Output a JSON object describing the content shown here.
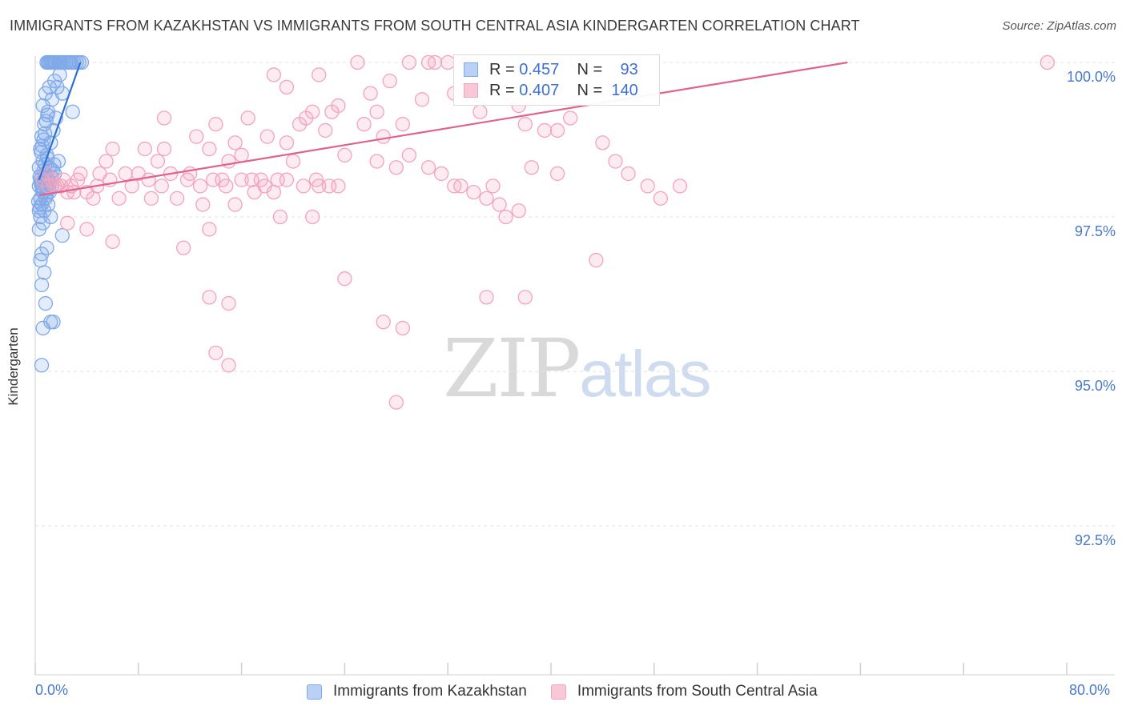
{
  "title": "IMMIGRANTS FROM KAZAKHSTAN VS IMMIGRANTS FROM SOUTH CENTRAL ASIA KINDERGARTEN CORRELATION CHART",
  "source": "Source: ZipAtlas.com",
  "watermark": {
    "zip": "ZIP",
    "atlas": "atlas"
  },
  "legend_top": {
    "rows": [
      {
        "r_label": "R =",
        "r_value": "0.457",
        "n_label": "N =",
        "n_value": "93"
      },
      {
        "r_label": "R =",
        "r_value": "0.407",
        "n_label": "N =",
        "n_value": "140"
      }
    ]
  },
  "x_axis_labels": {
    "left": "0.0%",
    "right": "80.0%"
  },
  "chart_data": {
    "type": "scatter",
    "title": "IMMIGRANTS FROM KAZAKHSTAN VS IMMIGRANTS FROM SOUTH CENTRAL ASIA KINDERGARTEN CORRELATION CHART",
    "xlabel": "",
    "ylabel": "Kindergarten",
    "xlim": [
      0,
      80
    ],
    "ylim": [
      90.0,
      100.5
    ],
    "y_ticks": [
      {
        "value": 100.0,
        "label": "100.0%"
      },
      {
        "value": 97.5,
        "label": "97.5%"
      },
      {
        "value": 95.0,
        "label": "95.0%"
      },
      {
        "value": 92.5,
        "label": "92.5%"
      }
    ],
    "x_ticks": [
      0,
      8,
      16,
      24,
      32,
      40,
      48,
      56,
      64,
      72,
      80
    ],
    "grid": true,
    "legend": "bottom-center",
    "series": [
      {
        "name": "Immigrants from Kazakhstan",
        "color": "#7fa9e8",
        "line_color": "#2e6fd6",
        "R": 0.457,
        "N": 93,
        "trend": {
          "x0": 0.3,
          "y0": 98.1,
          "x1": 3.5,
          "y1": 100.0
        },
        "points": [
          [
            0.9,
            100.0
          ],
          [
            1.0,
            100.0
          ],
          [
            1.1,
            100.0
          ],
          [
            1.3,
            100.0
          ],
          [
            1.5,
            100.0
          ],
          [
            1.6,
            100.0
          ],
          [
            1.8,
            100.0
          ],
          [
            2.0,
            100.0
          ],
          [
            2.2,
            100.0
          ],
          [
            2.4,
            100.0
          ],
          [
            2.6,
            100.0
          ],
          [
            2.8,
            100.0
          ],
          [
            3.0,
            100.0
          ],
          [
            3.2,
            100.0
          ],
          [
            3.4,
            100.0
          ],
          [
            1.2,
            100.0
          ],
          [
            1.9,
            100.0
          ],
          [
            2.7,
            100.0
          ],
          [
            3.6,
            100.0
          ],
          [
            1.4,
            100.0
          ],
          [
            1.9,
            99.8
          ],
          [
            1.5,
            99.7
          ],
          [
            1.1,
            99.6
          ],
          [
            1.7,
            99.6
          ],
          [
            2.1,
            99.5
          ],
          [
            0.8,
            99.5
          ],
          [
            1.3,
            99.4
          ],
          [
            0.6,
            99.3
          ],
          [
            2.9,
            99.2
          ],
          [
            1.0,
            99.2
          ],
          [
            1.6,
            99.1
          ],
          [
            0.7,
            99.0
          ],
          [
            1.4,
            98.9
          ],
          [
            0.5,
            98.8
          ],
          [
            1.2,
            98.7
          ],
          [
            0.4,
            98.6
          ],
          [
            0.9,
            98.5
          ],
          [
            1.8,
            98.4
          ],
          [
            0.6,
            98.4
          ],
          [
            1.1,
            98.3
          ],
          [
            0.3,
            98.3
          ],
          [
            0.8,
            98.2
          ],
          [
            1.5,
            98.2
          ],
          [
            0.4,
            98.1
          ],
          [
            0.7,
            98.1
          ],
          [
            1.0,
            98.1
          ],
          [
            0.5,
            98.0
          ],
          [
            0.9,
            98.0
          ],
          [
            1.3,
            98.0
          ],
          [
            0.3,
            98.0
          ],
          [
            0.6,
            97.9
          ],
          [
            1.1,
            97.9
          ],
          [
            0.4,
            97.8
          ],
          [
            0.8,
            97.8
          ],
          [
            0.5,
            97.7
          ],
          [
            1.0,
            97.7
          ],
          [
            0.3,
            97.6
          ],
          [
            0.7,
            97.6
          ],
          [
            1.2,
            97.5
          ],
          [
            0.4,
            97.5
          ],
          [
            0.6,
            97.4
          ],
          [
            0.3,
            97.3
          ],
          [
            2.1,
            97.2
          ],
          [
            0.9,
            97.0
          ],
          [
            0.5,
            96.9
          ],
          [
            0.4,
            96.8
          ],
          [
            0.7,
            96.6
          ],
          [
            0.5,
            96.4
          ],
          [
            0.8,
            96.1
          ],
          [
            1.2,
            95.8
          ],
          [
            1.4,
            95.8
          ],
          [
            0.6,
            95.7
          ],
          [
            0.5,
            95.1
          ],
          [
            0.35,
            98.15
          ],
          [
            0.45,
            98.05
          ],
          [
            0.55,
            97.95
          ],
          [
            0.65,
            98.25
          ],
          [
            0.75,
            98.35
          ],
          [
            0.85,
            97.85
          ],
          [
            0.95,
            98.45
          ],
          [
            1.05,
            97.95
          ],
          [
            1.15,
            98.05
          ],
          [
            1.25,
            98.15
          ],
          [
            1.35,
            98.25
          ],
          [
            1.45,
            98.35
          ],
          [
            0.25,
            97.75
          ],
          [
            0.35,
            97.65
          ],
          [
            0.45,
            98.55
          ],
          [
            0.55,
            98.65
          ],
          [
            0.65,
            98.75
          ],
          [
            0.75,
            98.85
          ],
          [
            0.85,
            99.05
          ],
          [
            0.95,
            99.15
          ]
        ]
      },
      {
        "name": "Immigrants from South Central Asia",
        "color": "#f3a3bd",
        "line_color": "#e0628e",
        "R": 0.407,
        "N": 140,
        "trend": {
          "x0": 0.3,
          "y0": 97.85,
          "x1": 63.0,
          "y1": 100.0
        },
        "points": [
          [
            25.0,
            100.0
          ],
          [
            29.0,
            100.0
          ],
          [
            30.5,
            100.0
          ],
          [
            31.0,
            100.0
          ],
          [
            32.0,
            100.0
          ],
          [
            33.5,
            100.0
          ],
          [
            37.0,
            100.0
          ],
          [
            40.0,
            100.0
          ],
          [
            42.0,
            100.0
          ],
          [
            78.5,
            100.0
          ],
          [
            18.5,
            99.8
          ],
          [
            22.0,
            99.8
          ],
          [
            27.5,
            99.7
          ],
          [
            33.0,
            99.6
          ],
          [
            19.5,
            99.6
          ],
          [
            26.0,
            99.5
          ],
          [
            32.5,
            99.5
          ],
          [
            30.0,
            99.4
          ],
          [
            37.5,
            99.3
          ],
          [
            21.5,
            99.2
          ],
          [
            34.5,
            99.2
          ],
          [
            23.0,
            99.2
          ],
          [
            10.0,
            99.1
          ],
          [
            16.5,
            99.1
          ],
          [
            20.5,
            99.0
          ],
          [
            14.0,
            99.0
          ],
          [
            25.5,
            99.0
          ],
          [
            38.0,
            99.0
          ],
          [
            22.5,
            98.9
          ],
          [
            39.5,
            98.9
          ],
          [
            12.5,
            98.8
          ],
          [
            18.0,
            98.8
          ],
          [
            27.0,
            98.8
          ],
          [
            15.5,
            98.7
          ],
          [
            19.5,
            98.7
          ],
          [
            6.0,
            98.6
          ],
          [
            8.5,
            98.6
          ],
          [
            10.0,
            98.6
          ],
          [
            13.5,
            98.6
          ],
          [
            16.0,
            98.5
          ],
          [
            24.0,
            98.5
          ],
          [
            5.5,
            98.4
          ],
          [
            9.5,
            98.4
          ],
          [
            15.0,
            98.4
          ],
          [
            20.0,
            98.4
          ],
          [
            26.5,
            98.4
          ],
          [
            28.0,
            98.3
          ],
          [
            38.5,
            98.3
          ],
          [
            3.5,
            98.2
          ],
          [
            5.0,
            98.2
          ],
          [
            7.0,
            98.2
          ],
          [
            8.0,
            98.2
          ],
          [
            10.5,
            98.2
          ],
          [
            12.0,
            98.2
          ],
          [
            14.5,
            98.1
          ],
          [
            16.0,
            98.1
          ],
          [
            17.5,
            98.1
          ],
          [
            19.5,
            98.1
          ],
          [
            22.0,
            98.0
          ],
          [
            23.5,
            98.0
          ],
          [
            1.0,
            98.0
          ],
          [
            1.5,
            98.0
          ],
          [
            2.0,
            98.0
          ],
          [
            2.5,
            97.9
          ],
          [
            3.0,
            97.9
          ],
          [
            4.0,
            97.9
          ],
          [
            4.5,
            97.8
          ],
          [
            6.5,
            97.8
          ],
          [
            9.0,
            97.8
          ],
          [
            11.0,
            97.8
          ],
          [
            13.0,
            97.7
          ],
          [
            15.5,
            97.7
          ],
          [
            17.0,
            97.9
          ],
          [
            18.5,
            97.9
          ],
          [
            2.5,
            97.4
          ],
          [
            4.0,
            97.3
          ],
          [
            6.0,
            97.1
          ],
          [
            11.5,
            97.0
          ],
          [
            13.5,
            97.3
          ],
          [
            19.0,
            97.5
          ],
          [
            21.5,
            97.5
          ],
          [
            32.5,
            98.0
          ],
          [
            35.5,
            98.0
          ],
          [
            36.5,
            97.5
          ],
          [
            43.5,
            96.8
          ],
          [
            24.0,
            96.5
          ],
          [
            27.0,
            95.8
          ],
          [
            28.5,
            95.7
          ],
          [
            13.5,
            96.2
          ],
          [
            15.0,
            96.1
          ],
          [
            14.0,
            95.3
          ],
          [
            15.0,
            95.1
          ],
          [
            28.0,
            94.5
          ],
          [
            35.0,
            96.2
          ],
          [
            38.0,
            96.2
          ],
          [
            44.0,
            98.7
          ],
          [
            40.5,
            98.2
          ],
          [
            40.5,
            98.9
          ],
          [
            41.5,
            99.1
          ],
          [
            37.5,
            97.6
          ],
          [
            29.0,
            98.5
          ],
          [
            30.5,
            98.3
          ],
          [
            31.5,
            98.2
          ],
          [
            33.0,
            98.0
          ],
          [
            34.0,
            97.9
          ],
          [
            35.0,
            97.8
          ],
          [
            36.0,
            97.7
          ],
          [
            45.0,
            98.4
          ],
          [
            46.0,
            98.2
          ],
          [
            47.5,
            98.0
          ],
          [
            48.5,
            97.8
          ],
          [
            50.0,
            98.0
          ],
          [
            21.0,
            99.1
          ],
          [
            23.5,
            99.3
          ],
          [
            26.5,
            99.2
          ],
          [
            28.5,
            99.0
          ],
          [
            34.5,
            99.7
          ],
          [
            36.5,
            99.5
          ],
          [
            0.6,
            98.1
          ],
          [
            0.9,
            98.2
          ],
          [
            1.3,
            98.1
          ],
          [
            1.7,
            98.0
          ],
          [
            2.2,
            98.1
          ],
          [
            2.8,
            98.0
          ],
          [
            3.3,
            98.1
          ],
          [
            4.8,
            98.0
          ],
          [
            5.8,
            98.1
          ],
          [
            7.5,
            98.0
          ],
          [
            8.8,
            98.1
          ],
          [
            9.8,
            98.0
          ],
          [
            11.8,
            98.1
          ],
          [
            12.8,
            98.0
          ],
          [
            13.8,
            98.1
          ],
          [
            14.8,
            98.0
          ],
          [
            16.8,
            98.1
          ],
          [
            17.8,
            98.0
          ],
          [
            18.8,
            98.1
          ],
          [
            20.8,
            98.0
          ],
          [
            21.8,
            98.1
          ],
          [
            22.8,
            98.0
          ]
        ]
      }
    ]
  },
  "bottom_legend": [
    {
      "label": "Immigrants from Kazakhstan"
    },
    {
      "label": "Immigrants from South Central Asia"
    }
  ]
}
